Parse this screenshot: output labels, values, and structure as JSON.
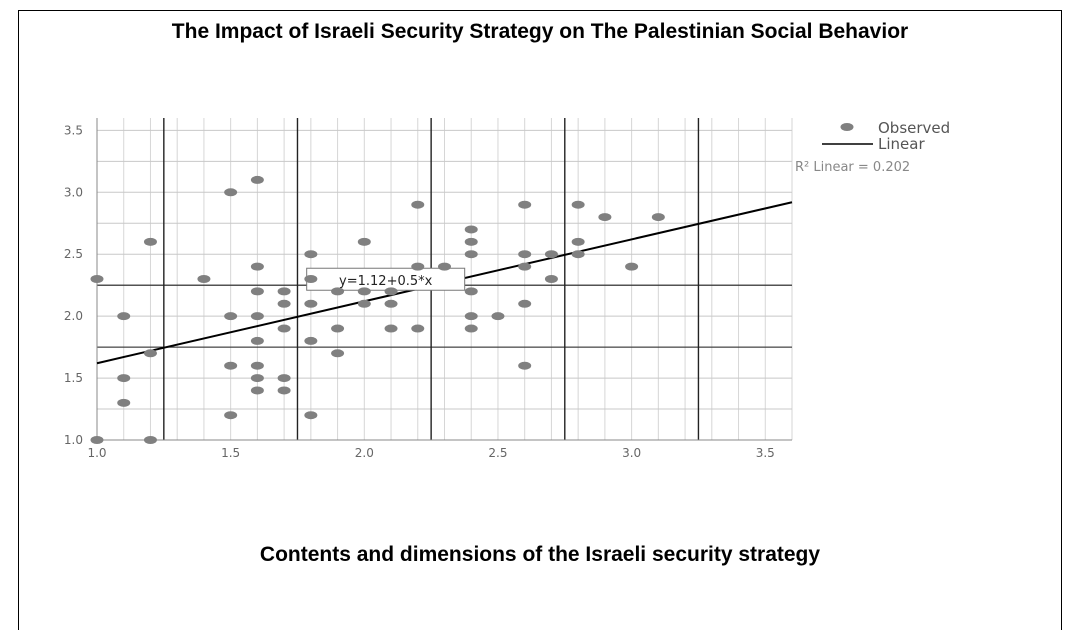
{
  "title": "The Impact of Israeli Security Strategy on The Palestinian Social Behavior",
  "chart_data": {
    "type": "scatter",
    "title": "The Impact of Israeli Security Strategy on The Palestinian Social Behavior",
    "xlabel": "Contents and dimensions of the Israeli security strategy",
    "ylabel": "",
    "xlim": [
      1.0,
      3.6
    ],
    "ylim": [
      1.0,
      3.6
    ],
    "x_ticks": [
      "1.0",
      "1.5",
      "2.0",
      "2.5",
      "3.0",
      "3.5"
    ],
    "y_ticks": [
      "1.0",
      "1.5",
      "2.0",
      "2.5",
      "3.0",
      "3.5"
    ],
    "x_tick_values": [
      1.0,
      1.5,
      2.0,
      2.5,
      3.0,
      3.5
    ],
    "y_tick_values": [
      1.0,
      1.5,
      2.0,
      2.5,
      3.0,
      3.5
    ],
    "grid": true,
    "legend_position": "top-right",
    "legend": [
      {
        "label": "Observed",
        "symbol": "dot"
      },
      {
        "label": "Linear",
        "symbol": "line"
      }
    ],
    "r_squared_label": "R² Linear = 0.202",
    "fit": {
      "intercept": 1.12,
      "slope": 0.5,
      "label": "y=1.12+0.5*x"
    },
    "points": [
      [
        1.0,
        2.3
      ],
      [
        1.0,
        1.0
      ],
      [
        1.1,
        2.0
      ],
      [
        1.1,
        1.5
      ],
      [
        1.1,
        1.3
      ],
      [
        1.2,
        2.6
      ],
      [
        1.2,
        1.7
      ],
      [
        1.2,
        1.0
      ],
      [
        1.4,
        2.3
      ],
      [
        1.5,
        3.0
      ],
      [
        1.5,
        2.0
      ],
      [
        1.5,
        1.6
      ],
      [
        1.5,
        1.2
      ],
      [
        1.6,
        3.1
      ],
      [
        1.6,
        2.4
      ],
      [
        1.6,
        2.2
      ],
      [
        1.6,
        2.0
      ],
      [
        1.6,
        1.8
      ],
      [
        1.6,
        1.6
      ],
      [
        1.6,
        1.5
      ],
      [
        1.6,
        1.4
      ],
      [
        1.7,
        2.2
      ],
      [
        1.7,
        2.1
      ],
      [
        1.7,
        1.9
      ],
      [
        1.7,
        1.5
      ],
      [
        1.7,
        1.4
      ],
      [
        1.8,
        2.5
      ],
      [
        1.8,
        2.3
      ],
      [
        1.8,
        2.1
      ],
      [
        1.8,
        1.8
      ],
      [
        1.8,
        1.2
      ],
      [
        1.9,
        2.2
      ],
      [
        1.9,
        1.9
      ],
      [
        1.9,
        1.7
      ],
      [
        2.0,
        2.6
      ],
      [
        2.0,
        2.2
      ],
      [
        2.0,
        2.1
      ],
      [
        2.1,
        2.2
      ],
      [
        2.1,
        2.1
      ],
      [
        2.1,
        1.9
      ],
      [
        2.2,
        2.9
      ],
      [
        2.2,
        2.4
      ],
      [
        2.2,
        1.9
      ],
      [
        2.3,
        2.4
      ],
      [
        2.4,
        2.7
      ],
      [
        2.4,
        2.6
      ],
      [
        2.4,
        2.5
      ],
      [
        2.4,
        2.2
      ],
      [
        2.4,
        2.0
      ],
      [
        2.4,
        1.9
      ],
      [
        2.5,
        2.0
      ],
      [
        2.6,
        2.9
      ],
      [
        2.6,
        2.5
      ],
      [
        2.6,
        2.4
      ],
      [
        2.6,
        2.1
      ],
      [
        2.6,
        1.6
      ],
      [
        2.7,
        2.5
      ],
      [
        2.7,
        2.3
      ],
      [
        2.8,
        2.9
      ],
      [
        2.8,
        2.6
      ],
      [
        2.8,
        2.5
      ],
      [
        2.9,
        2.8
      ],
      [
        3.0,
        2.4
      ],
      [
        3.1,
        2.8
      ]
    ]
  }
}
